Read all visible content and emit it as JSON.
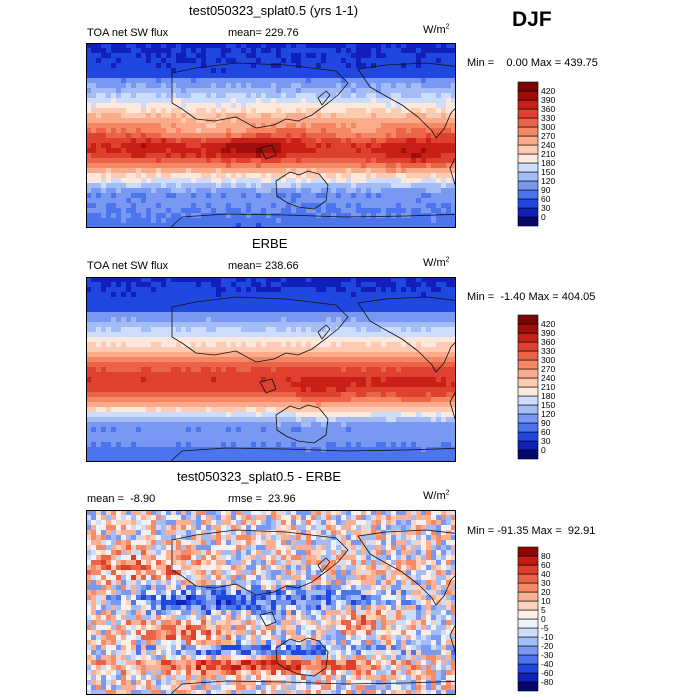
{
  "season": "DJF",
  "colors": {
    "full": [
      "#08086b",
      "#1020b8",
      "#2048e0",
      "#4c74ec",
      "#7898f2",
      "#a4bcf6",
      "#cddcfa",
      "#fde9dc",
      "#fccbb2",
      "#fbaa8a",
      "#f68765",
      "#ec6448",
      "#de4130",
      "#c82018",
      "#a00f0c",
      "#7a0606"
    ],
    "diff": [
      "#08086b",
      "#1020b8",
      "#2048e0",
      "#4c74ec",
      "#7898f2",
      "#a4bcf6",
      "#cddcfa",
      "#eef2fd",
      "#fdeee6",
      "#fcd2bc",
      "#fbb094",
      "#f68b68",
      "#ec6448",
      "#de3e2a",
      "#c41c14",
      "#8e0606"
    ]
  },
  "chart_data": [
    {
      "type": "heatmap",
      "title": "test050323_splat0.5 (yrs 1-1)",
      "variable": "TOA net SW flux",
      "stat_text": "mean= 229.76",
      "units_base": "W/m",
      "units_exp": "2",
      "min_max_text": "Min =    0.00 Max = 439.75",
      "colorbar_levels": [
        "0",
        "30",
        "60",
        "90",
        "120",
        "150",
        "180",
        "210",
        "240",
        "270",
        "300",
        "330",
        "360",
        "390",
        "420"
      ],
      "field": "model"
    },
    {
      "type": "heatmap",
      "title": "ERBE",
      "variable": "TOA net SW flux",
      "stat_text": "mean= 238.66",
      "units_base": "W/m",
      "units_exp": "2",
      "min_max_text": "Min =  -1.40 Max = 404.05",
      "colorbar_levels": [
        "0",
        "30",
        "60",
        "90",
        "120",
        "150",
        "180",
        "210",
        "240",
        "270",
        "300",
        "330",
        "360",
        "390",
        "420"
      ],
      "field": "obs"
    },
    {
      "type": "heatmap",
      "title": "test050323_splat0.5 - ERBE",
      "variable": "mean =  -8.90",
      "stat_text": "rmse =  23.96",
      "units_base": "W/m",
      "units_exp": "2",
      "min_max_text": "Min = -91.35 Max =  92.91",
      "colorbar_levels": [
        "-80",
        "-60",
        "-40",
        "-30",
        "-20",
        "-10",
        "-5",
        "0",
        "5",
        "10",
        "20",
        "30",
        "40",
        "60",
        "80"
      ],
      "field": "diff"
    }
  ]
}
